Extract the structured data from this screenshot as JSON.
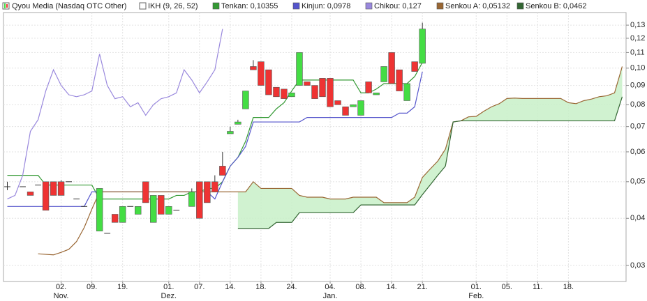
{
  "chart_data": {
    "type": "candlestick",
    "title": "Qyou Media (Nasdaq OTC Other)",
    "indicator": "IKH (9, 26, 52)",
    "log_scale": true,
    "grid": true,
    "xlim": [
      -0.5,
      80.5
    ],
    "xticks": [
      {
        "value": 7,
        "label": "02."
      },
      {
        "value": 11,
        "label": "09."
      },
      {
        "value": 15,
        "label": "19."
      },
      {
        "value": 21,
        "label": "01."
      },
      {
        "value": 25,
        "label": "07."
      },
      {
        "value": 29,
        "label": "14."
      },
      {
        "value": 33,
        "label": "18."
      },
      {
        "value": 37,
        "label": "24."
      },
      {
        "value": 42,
        "label": "04."
      },
      {
        "value": 46,
        "label": "08."
      },
      {
        "value": 50,
        "label": "14."
      },
      {
        "value": 54,
        "label": "21."
      },
      {
        "value": 61,
        "label": "01."
      },
      {
        "value": 65,
        "label": "05."
      },
      {
        "value": 69,
        "label": "11."
      },
      {
        "value": 73,
        "label": "18."
      }
    ],
    "month_labels": [
      {
        "value": 7,
        "label": "Nov."
      },
      {
        "value": 21,
        "label": "Dez."
      },
      {
        "value": 42,
        "label": "Jan."
      },
      {
        "value": 61,
        "label": "Feb."
      }
    ],
    "ylim": [
      0.0272,
      0.1404
    ],
    "yticks": [
      {
        "value": 0.03,
        "label": "0,03"
      },
      {
        "value": 0.04,
        "label": "0,04"
      },
      {
        "value": 0.05,
        "label": "0,05"
      },
      {
        "value": 0.06,
        "label": "0,06"
      },
      {
        "value": 0.07,
        "label": "0,07"
      },
      {
        "value": 0.08,
        "label": "0,08"
      },
      {
        "value": 0.09,
        "label": "0,09"
      },
      {
        "value": 0.1,
        "label": "0,10"
      },
      {
        "value": 0.11,
        "label": "0,11"
      },
      {
        "value": 0.12,
        "label": "0,12"
      },
      {
        "value": 0.13,
        "label": "0,13"
      }
    ],
    "up_color": "#44dd44",
    "down_color": "#ee3333",
    "candles": {
      "open": [
        0.0485,
        null,
        0.0485,
        0.047,
        0.049,
        0.05,
        0.05,
        0.05,
        0.05,
        0.045,
        0.043,
        null,
        0.037,
        0.0365,
        0.041,
        0.039,
        0.043,
        0.041,
        0.05,
        0.039,
        0.046,
        0.041,
        0.042,
        null,
        0.043,
        0.05,
        0.05,
        0.05,
        0.055,
        0.067,
        0.071,
        0.078,
        0.101,
        0.104,
        0.099,
        0.089,
        0.088,
        0.084,
        0.09,
        0.092,
        0.09,
        0.094,
        0.094,
        0.082,
        0.079,
        0.079,
        0.075,
        0.092,
        0.085,
        0.092,
        0.11,
        0.099,
        0.082,
        0.104,
        0.103
      ],
      "high": [
        0.05,
        null,
        0.0485,
        0.047,
        0.049,
        0.05,
        0.05,
        0.0505,
        0.05,
        0.045,
        0.043,
        null,
        0.048,
        0.0365,
        0.041,
        0.043,
        0.043,
        0.043,
        0.05,
        0.046,
        0.046,
        0.043,
        0.042,
        null,
        0.048,
        0.05,
        0.05,
        0.052,
        0.06,
        0.07,
        0.073,
        0.087,
        0.105,
        0.104,
        0.099,
        0.089,
        0.088,
        0.086,
        0.11,
        0.092,
        0.09,
        0.094,
        0.094,
        0.082,
        0.079,
        0.08,
        0.082,
        0.092,
        0.086,
        0.101,
        0.11,
        0.099,
        0.091,
        0.104,
        0.132
      ],
      "low": [
        0.0475,
        null,
        0.0485,
        0.046,
        0.049,
        0.042,
        0.046,
        0.046,
        0.05,
        0.045,
        0.043,
        null,
        0.037,
        0.0365,
        0.039,
        0.039,
        0.043,
        0.041,
        0.044,
        0.039,
        0.041,
        0.041,
        0.042,
        null,
        0.043,
        0.04,
        0.044,
        0.047,
        0.052,
        0.067,
        0.071,
        0.078,
        0.099,
        0.09,
        0.085,
        0.084,
        0.083,
        0.084,
        0.09,
        0.09,
        0.083,
        0.084,
        0.079,
        0.08,
        0.075,
        0.079,
        0.075,
        0.086,
        0.085,
        0.092,
        0.091,
        0.087,
        0.082,
        0.098,
        0.103
      ],
      "close": [
        0.0485,
        null,
        0.0485,
        0.046,
        0.049,
        0.042,
        0.046,
        0.046,
        0.05,
        0.045,
        0.043,
        null,
        0.048,
        0.0365,
        0.039,
        0.043,
        0.043,
        0.043,
        0.044,
        0.046,
        0.041,
        0.043,
        0.042,
        null,
        0.047,
        0.04,
        0.044,
        0.047,
        0.052,
        0.068,
        0.072,
        0.087,
        0.099,
        0.09,
        0.085,
        0.084,
        0.083,
        0.086,
        0.11,
        0.09,
        0.083,
        0.084,
        0.079,
        0.08,
        0.075,
        0.08,
        0.082,
        0.086,
        0.086,
        0.101,
        0.091,
        0.087,
        0.091,
        0.098,
        0.127
      ]
    },
    "series": [
      {
        "name": "Tenkan: 0,10355",
        "color": "#339933",
        "values": [
          0.052,
          0.052,
          0.052,
          0.052,
          0.052,
          0.049,
          0.049,
          0.049,
          0.049,
          0.049,
          0.049,
          0.049,
          0.045,
          0.045,
          0.045,
          0.045,
          0.045,
          0.045,
          0.045,
          0.045,
          0.045,
          0.045,
          0.046,
          0.046,
          0.047,
          0.047,
          0.048,
          0.048,
          0.05,
          0.055,
          0.058,
          0.064,
          0.074,
          0.074,
          0.074,
          0.078,
          0.081,
          0.087,
          0.093,
          0.093,
          0.093,
          0.093,
          0.093,
          0.093,
          0.093,
          0.093,
          0.086,
          0.086,
          0.088,
          0.091,
          0.091,
          0.091,
          0.091,
          0.095,
          0.10355
        ]
      },
      {
        "name": "Kinjun: 0,0978",
        "color": "#5555cc",
        "values": [
          0.043,
          0.043,
          0.043,
          0.043,
          0.043,
          0.043,
          0.043,
          0.043,
          0.043,
          0.043,
          0.043,
          0.047,
          0.047,
          0.047,
          0.047,
          0.047,
          0.047,
          0.047,
          0.047,
          0.047,
          0.047,
          0.047,
          0.047,
          0.047,
          0.047,
          0.047,
          0.047,
          0.045,
          0.05,
          0.055,
          0.058,
          0.062,
          0.072,
          0.072,
          0.072,
          0.072,
          0.072,
          0.072,
          0.072,
          0.074,
          0.074,
          0.074,
          0.074,
          0.074,
          0.074,
          0.074,
          0.074,
          0.074,
          0.074,
          0.074,
          0.074,
          0.076,
          0.076,
          0.079,
          0.0978
        ]
      },
      {
        "name": "Chikou: 0,127",
        "color": "#9988dd",
        "values": [
          0.045,
          0.046,
          0.052,
          0.068,
          0.073,
          0.087,
          0.099,
          0.09,
          0.085,
          0.084,
          0.085,
          0.087,
          0.109,
          0.09,
          0.083,
          0.084,
          0.079,
          0.081,
          0.075,
          0.08,
          0.083,
          0.084,
          0.086,
          0.099,
          0.093,
          0.086,
          0.092,
          0.099,
          0.127
        ]
      },
      {
        "name": "Senkou A: 0,05132",
        "color": "#996633",
        "values": [
          null,
          null,
          null,
          null,
          0.0322,
          0.0321,
          0.032,
          0.0325,
          0.0331,
          0.0347,
          0.0378,
          0.0423,
          0.047,
          0.047,
          0.047,
          0.047,
          0.047,
          0.047,
          0.047,
          0.047,
          0.047,
          0.047,
          0.047,
          0.047,
          0.047,
          0.047,
          0.047,
          0.047,
          0.047,
          0.047,
          0.047,
          0.047,
          0.05,
          0.048,
          0.048,
          0.048,
          0.048,
          0.048,
          0.046,
          0.0455,
          0.0455,
          0.0455,
          0.045,
          0.045,
          0.045,
          0.0455,
          0.0455,
          0.0455,
          0.0455,
          0.044,
          0.044,
          0.044,
          0.044,
          0.0455,
          0.05132,
          0.054,
          0.0567,
          0.061,
          0.072,
          0.0725,
          0.0743,
          0.0745,
          0.0769,
          0.079,
          0.0805,
          0.0831,
          0.0833,
          0.0831,
          0.0831,
          0.0831,
          0.0831,
          0.0831,
          0.0831,
          0.081,
          0.0805,
          0.082,
          0.0828,
          0.084,
          0.0845,
          0.086,
          0.101
        ]
      },
      {
        "name": "Senkou B: 0,0462",
        "color": "#336633",
        "values": [
          null,
          null,
          null,
          null,
          null,
          null,
          null,
          null,
          null,
          null,
          null,
          null,
          null,
          null,
          null,
          null,
          null,
          null,
          null,
          null,
          null,
          null,
          null,
          null,
          null,
          null,
          null,
          null,
          null,
          null,
          0.0376,
          0.0376,
          0.0376,
          0.0376,
          0.0376,
          0.039,
          0.039,
          0.039,
          0.0414,
          0.0414,
          0.0414,
          0.0414,
          0.0414,
          0.0414,
          0.0414,
          0.0414,
          0.0434,
          0.0434,
          0.0434,
          0.0434,
          0.0434,
          0.0434,
          0.0434,
          0.0434,
          0.0462,
          0.049,
          0.052,
          0.055,
          0.072,
          0.0725,
          0.0725,
          0.0725,
          0.0725,
          0.0725,
          0.0725,
          0.0725,
          0.0725,
          0.0725,
          0.0725,
          0.0725,
          0.0725,
          0.0725,
          0.0725,
          0.0725,
          0.0725,
          0.0725,
          0.0725,
          0.0725,
          0.0725,
          0.0725,
          0.084
        ]
      }
    ]
  }
}
